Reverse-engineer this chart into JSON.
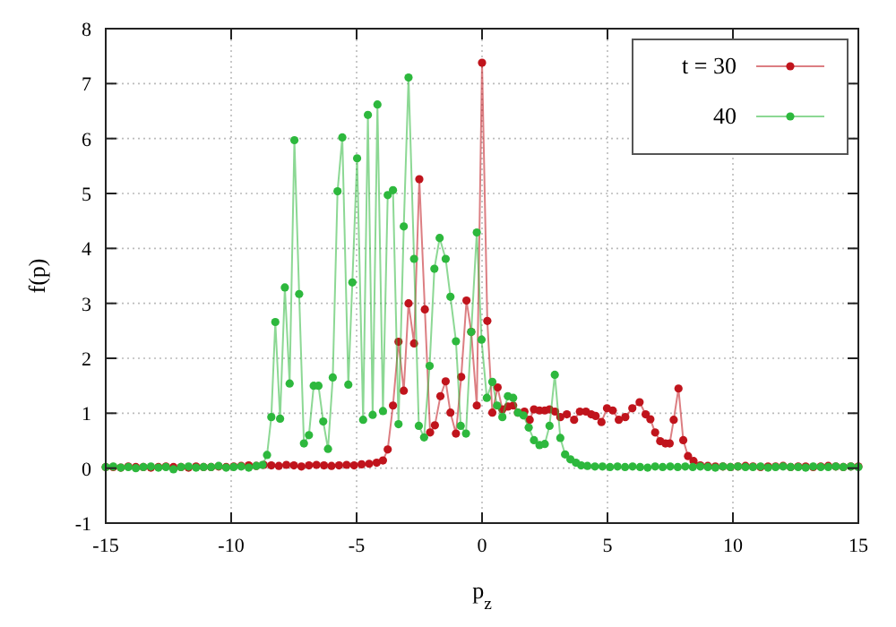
{
  "chart_data": {
    "type": "line",
    "xlabel": "p$_{z}$",
    "ylabel": "f(p)",
    "xlim": [
      -15,
      15
    ],
    "xticks": [
      -15,
      -10,
      -5,
      0,
      5,
      10,
      15
    ],
    "ylim": [
      -1,
      8
    ],
    "yticks": [
      -1,
      0,
      1,
      2,
      3,
      4,
      5,
      6,
      7,
      8
    ],
    "grid": true,
    "legend": "top right",
    "marker": "circle",
    "line_style": "solid",
    "series": [
      {
        "name": "t = 30",
        "color": "#c0141c",
        "x": [
          -15,
          -14.7,
          -14.4,
          -14.1,
          -13.8,
          -13.5,
          -13.2,
          -12.9,
          -12.6,
          -12.3,
          -12,
          -11.7,
          -11.4,
          -11.1,
          -10.8,
          -10.5,
          -10.2,
          -9.9,
          -9.6,
          -9.3,
          -9,
          -8.7,
          -8.4,
          -8.1,
          -7.8,
          -7.5,
          -7.2,
          -6.9,
          -6.6,
          -6.3,
          -6,
          -5.7,
          -5.4,
          -5.1,
          -4.8,
          -4.5,
          -4.2,
          -3.95,
          -3.76,
          -3.55,
          -3.33,
          -3.12,
          -2.93,
          -2.71,
          -2.5,
          -2.28,
          -2.07,
          -1.88,
          -1.66,
          -1.45,
          -1.26,
          -1.04,
          -0.83,
          -0.62,
          -0.43,
          -0.21,
          0,
          0.21,
          0.41,
          0.62,
          0.81,
          1.03,
          1.24,
          1.43,
          1.69,
          1.9,
          2.07,
          2.29,
          2.5,
          2.69,
          2.91,
          3.12,
          3.38,
          3.67,
          3.9,
          4.14,
          4.35,
          4.53,
          4.76,
          4.98,
          5.21,
          5.45,
          5.71,
          5.99,
          6.28,
          6.52,
          6.71,
          6.9,
          7.1,
          7.31,
          7.48,
          7.64,
          7.83,
          8.02,
          8.21,
          8.43,
          8.7,
          9,
          9.3,
          9.6,
          9.9,
          10.2,
          10.5,
          10.8,
          11.1,
          11.4,
          11.7,
          12,
          12.3,
          12.6,
          12.9,
          13.2,
          13.5,
          13.8,
          14.1,
          14.4,
          14.7,
          15
        ],
        "values": [
          0.02,
          0.02,
          0.01,
          0.03,
          0.02,
          0.02,
          0.01,
          0.02,
          0.03,
          0.02,
          0.02,
          0.01,
          0.03,
          0.02,
          0.02,
          0.03,
          0.02,
          0.03,
          0.04,
          0.05,
          0.04,
          0.06,
          0.05,
          0.04,
          0.06,
          0.05,
          0.03,
          0.05,
          0.06,
          0.05,
          0.04,
          0.05,
          0.06,
          0.05,
          0.07,
          0.08,
          0.1,
          0.14,
          0.34,
          1.14,
          2.3,
          1.41,
          3.0,
          2.27,
          5.26,
          2.89,
          0.65,
          0.78,
          1.31,
          1.58,
          1.01,
          0.63,
          1.66,
          3.05,
          2.48,
          1.14,
          7.38,
          2.68,
          1.01,
          1.47,
          1.07,
          1.12,
          1.14,
          1.01,
          1.03,
          0.88,
          1.07,
          1.05,
          1.05,
          1.07,
          1.03,
          0.93,
          0.98,
          0.88,
          1.03,
          1.03,
          0.98,
          0.95,
          0.84,
          1.09,
          1.05,
          0.88,
          0.93,
          1.09,
          1.2,
          0.98,
          0.89,
          0.65,
          0.49,
          0.45,
          0.45,
          0.88,
          1.45,
          0.51,
          0.22,
          0.13,
          0.05,
          0.04,
          0.03,
          0.03,
          0.02,
          0.03,
          0.04,
          0.03,
          0.02,
          0.03,
          0.03,
          0.04,
          0.02,
          0.03,
          0.03,
          0.02,
          0.03,
          0.04,
          0.03,
          0.02,
          0.03,
          0.03
        ]
      },
      {
        "name": "40",
        "color": "#2db83d",
        "x": [
          -15,
          -14.7,
          -14.4,
          -14.1,
          -13.8,
          -13.5,
          -13.2,
          -12.9,
          -12.6,
          -12.3,
          -12,
          -11.7,
          -11.4,
          -11.1,
          -10.8,
          -10.5,
          -10.2,
          -9.9,
          -9.6,
          -9.3,
          -9,
          -8.75,
          -8.57,
          -8.4,
          -8.24,
          -8.05,
          -7.86,
          -7.67,
          -7.48,
          -7.29,
          -7.1,
          -6.9,
          -6.71,
          -6.52,
          -6.33,
          -6.14,
          -5.95,
          -5.76,
          -5.57,
          -5.33,
          -5.17,
          -4.98,
          -4.74,
          -4.55,
          -4.36,
          -4.17,
          -3.95,
          -3.76,
          -3.55,
          -3.33,
          -3.12,
          -2.93,
          -2.71,
          -2.52,
          -2.31,
          -2.09,
          -1.9,
          -1.69,
          -1.45,
          -1.26,
          -1.04,
          -0.85,
          -0.64,
          -0.43,
          -0.21,
          -0.02,
          0.19,
          0.41,
          0.6,
          0.81,
          1.03,
          1.24,
          1.43,
          1.65,
          1.86,
          2.07,
          2.29,
          2.5,
          2.69,
          2.9,
          3.12,
          3.31,
          3.52,
          3.74,
          3.95,
          4.2,
          4.5,
          4.8,
          5.1,
          5.4,
          5.7,
          6,
          6.3,
          6.6,
          6.9,
          7.2,
          7.5,
          7.8,
          8.1,
          8.4,
          8.7,
          9,
          9.3,
          9.6,
          9.9,
          10.2,
          10.5,
          10.8,
          11.1,
          11.4,
          11.7,
          12,
          12.3,
          12.6,
          12.9,
          13.2,
          13.5,
          13.8,
          14.1,
          14.4,
          14.7,
          15
        ],
        "values": [
          0.02,
          0.03,
          0.01,
          0.02,
          0.0,
          0.02,
          0.03,
          0.01,
          0.02,
          -0.02,
          0.02,
          0.03,
          0.01,
          0.02,
          0.02,
          0.04,
          0.01,
          0.02,
          0.03,
          0.01,
          0.04,
          0.06,
          0.24,
          0.93,
          2.66,
          0.9,
          3.29,
          1.54,
          5.97,
          3.17,
          0.45,
          0.6,
          1.5,
          1.5,
          0.85,
          0.35,
          1.65,
          5.04,
          6.02,
          1.52,
          3.38,
          5.64,
          0.88,
          6.43,
          0.97,
          6.62,
          1.04,
          4.97,
          5.06,
          0.8,
          4.4,
          7.11,
          3.81,
          0.77,
          0.56,
          1.86,
          3.63,
          4.19,
          3.81,
          3.12,
          2.31,
          0.77,
          0.63,
          2.48,
          4.29,
          2.34,
          1.28,
          1.57,
          1.14,
          0.93,
          1.31,
          1.28,
          1.01,
          0.96,
          0.74,
          0.51,
          0.42,
          0.44,
          0.77,
          1.7,
          0.55,
          0.25,
          0.16,
          0.1,
          0.05,
          0.04,
          0.03,
          0.03,
          0.02,
          0.03,
          0.02,
          0.03,
          0.02,
          0.01,
          0.03,
          0.02,
          0.03,
          0.02,
          0.03,
          0.02,
          0.03,
          0.02,
          0.01,
          0.03,
          0.02,
          0.03,
          0.02,
          0.02,
          0.03,
          0.01,
          0.02,
          0.03,
          0.02,
          0.02,
          0.01,
          0.03,
          0.02,
          0.02,
          0.03,
          0.02,
          0.03,
          0.02
        ]
      }
    ]
  }
}
